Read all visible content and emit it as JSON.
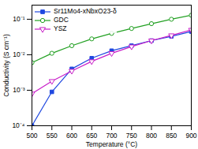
{
  "chart_data": {
    "type": "line",
    "x_label": "Temperature (°C)",
    "y_label": "Conductivity (S cm⁻¹)",
    "x": [
      500,
      550,
      600,
      650,
      700,
      750,
      800,
      850,
      900
    ],
    "series": [
      {
        "name": "Sr11Mo4-xNbxO23-δ",
        "color": "#1f48e0",
        "marker": "filled_square",
        "line_style": "solid",
        "values": [
          0.0001,
          0.0009,
          0.004,
          0.008,
          0.013,
          0.018,
          0.025,
          0.033,
          0.045
        ]
      },
      {
        "name": "GDC",
        "color": "#22a022",
        "marker": "open_circle",
        "line_style": "solid",
        "values": [
          0.006,
          0.011,
          0.018,
          0.028,
          0.04,
          0.055,
          0.075,
          0.1,
          0.13
        ]
      },
      {
        "name": "YSZ",
        "color": "#c81ec8",
        "marker": "open_triangle_down",
        "line_style": "solid",
        "values": [
          0.0008,
          0.0018,
          0.0035,
          0.0065,
          0.011,
          0.017,
          0.025,
          0.035,
          0.05
        ]
      }
    ],
    "xlim": [
      500,
      900
    ],
    "xticks": [
      500,
      550,
      600,
      650,
      700,
      750,
      800,
      850,
      900
    ],
    "ylim": [
      0.0001,
      0.25
    ],
    "yticks": [
      {
        "value": 0.0001,
        "label": "10⁻⁴"
      },
      {
        "value": 0.001,
        "label": "10⁻³"
      },
      {
        "value": 0.01,
        "label": "10⁻²"
      },
      {
        "value": 0.1,
        "label": "10⁻¹"
      }
    ],
    "log": "y",
    "grid": false,
    "legend": "top-left"
  }
}
